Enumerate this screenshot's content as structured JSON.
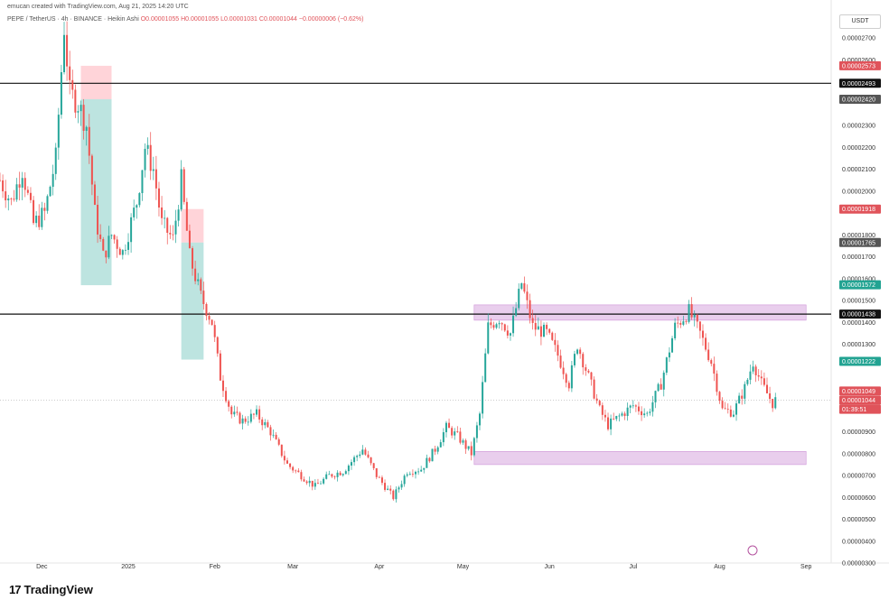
{
  "header": {
    "created_by": "emucan created with TradingView.com, Aug 21, 2025 14:20 UTC",
    "symbol_line": "PEPE / TetherUS · 4h · BINANCE · Heikin Ashi",
    "ohlc": "O0.00001055 H0.00001055 L0.00001031 C0.00001044 −0.00000006 (−0.62%)"
  },
  "currency": "USDT",
  "brand": {
    "name": "TradingView",
    "logo": "17"
  },
  "colors": {
    "up": "#26a69a",
    "down": "#ef5350",
    "zone": "#e1bee7",
    "green_box": "#b2dfdb",
    "red_box": "#ffcdd2",
    "badge_red": "#e0535a",
    "badge_gray": "#555555",
    "badge_black": "#111111",
    "badge_green": "#22a392"
  },
  "chart_data": {
    "type": "candlestick",
    "title": "PEPE / TetherUS · 4h · BINANCE · Heikin Ashi",
    "x_axis": {
      "labels": [
        "Dec",
        "2025",
        "Feb",
        "Mar",
        "Apr",
        "May",
        "Jun",
        "Jul",
        "Aug",
        "Sep"
      ],
      "dates": [
        "2024-12-01",
        "2025-01-01",
        "2025-02-01",
        "2025-03-01",
        "2025-04-01",
        "2025-05-01",
        "2025-06-01",
        "2025-07-01",
        "2025-08-01",
        "2025-09-01"
      ],
      "range": [
        "2024-11-16",
        "2025-09-10"
      ]
    },
    "y_axis": {
      "range": [
        3e-06,
        2.75e-05
      ],
      "ticks": [
        "0.00000300",
        "0.00000400",
        "0.00000500",
        "0.00000600",
        "0.00000700",
        "0.00000800",
        "0.00000900",
        "0.00001300",
        "0.00001400",
        "0.00001500",
        "0.00001600",
        "0.00001700",
        "0.00001800",
        "0.00002000",
        "0.00002100",
        "0.00002200",
        "0.00002300",
        "0.00002600",
        "0.00002700"
      ],
      "tick_values": [
        3e-06,
        4e-06,
        5e-06,
        6e-06,
        7e-06,
        8e-06,
        9e-06,
        1.3e-05,
        1.4e-05,
        1.5e-05,
        1.6e-05,
        1.7e-05,
        1.8e-05,
        2e-05,
        2.1e-05,
        2.2e-05,
        2.3e-05,
        2.6e-05,
        2.7e-05
      ]
    },
    "path_points": [
      [
        "2024-11-16",
        2.05e-05
      ],
      [
        "2024-11-20",
        1.95e-05
      ],
      [
        "2024-11-24",
        2.1e-05
      ],
      [
        "2024-11-28",
        1.85e-05
      ],
      [
        "2024-12-02",
        1.9e-05
      ],
      [
        "2024-12-06",
        2.15e-05
      ],
      [
        "2024-12-09",
        2.75e-05
      ],
      [
        "2024-12-11",
        2.45e-05
      ],
      [
        "2024-12-14",
        2.4e-05
      ],
      [
        "2024-12-17",
        2.3e-05
      ],
      [
        "2024-12-20",
        1.9e-05
      ],
      [
        "2024-12-23",
        1.7e-05
      ],
      [
        "2024-12-26",
        1.8e-05
      ],
      [
        "2024-12-30",
        1.72e-05
      ],
      [
        "2025-01-04",
        1.95e-05
      ],
      [
        "2025-01-07",
        2.2e-05
      ],
      [
        "2025-01-10",
        2.1e-05
      ],
      [
        "2025-01-13",
        1.85e-05
      ],
      [
        "2025-01-17",
        1.78e-05
      ],
      [
        "2025-01-20",
        2.05e-05
      ],
      [
        "2025-01-23",
        1.7e-05
      ],
      [
        "2025-01-27",
        1.52e-05
      ],
      [
        "2025-01-31",
        1.4e-05
      ],
      [
        "2025-02-03",
        1.15e-05
      ],
      [
        "2025-02-07",
        9.8e-06
      ],
      [
        "2025-02-11",
        9.5e-06
      ],
      [
        "2025-02-16",
        9.8e-06
      ],
      [
        "2025-02-21",
        9e-06
      ],
      [
        "2025-02-27",
        7.5e-06
      ],
      [
        "2025-03-04",
        7e-06
      ],
      [
        "2025-03-09",
        6.5e-06
      ],
      [
        "2025-03-14",
        7e-06
      ],
      [
        "2025-03-19",
        7.2e-06
      ],
      [
        "2025-03-26",
        8.2e-06
      ],
      [
        "2025-03-31",
        7e-06
      ],
      [
        "2025-04-06",
        6e-06
      ],
      [
        "2025-04-11",
        7.2e-06
      ],
      [
        "2025-04-16",
        7.3e-06
      ],
      [
        "2025-04-21",
        8.2e-06
      ],
      [
        "2025-04-25",
        9.2e-06
      ],
      [
        "2025-04-29",
        8.8e-06
      ],
      [
        "2025-05-04",
        8e-06
      ],
      [
        "2025-05-07",
        9.8e-06
      ],
      [
        "2025-05-10",
        1.38e-05
      ],
      [
        "2025-05-14",
        1.42e-05
      ],
      [
        "2025-05-18",
        1.35e-05
      ],
      [
        "2025-05-22",
        1.58e-05
      ],
      [
        "2025-05-26",
        1.38e-05
      ],
      [
        "2025-05-31",
        1.35e-05
      ],
      [
        "2025-06-04",
        1.25e-05
      ],
      [
        "2025-06-08",
        1.12e-05
      ],
      [
        "2025-06-11",
        1.3e-05
      ],
      [
        "2025-06-15",
        1.15e-05
      ],
      [
        "2025-06-19",
        1e-05
      ],
      [
        "2025-06-22",
        9.3e-06
      ],
      [
        "2025-06-26",
        9.7e-06
      ],
      [
        "2025-07-01",
        1.02e-05
      ],
      [
        "2025-07-06",
        9.8e-06
      ],
      [
        "2025-07-11",
        1.12e-05
      ],
      [
        "2025-07-16",
        1.38e-05
      ],
      [
        "2025-07-21",
        1.45e-05
      ],
      [
        "2025-07-25",
        1.35e-05
      ],
      [
        "2025-07-29",
        1.22e-05
      ],
      [
        "2025-08-02",
        1e-05
      ],
      [
        "2025-08-06",
        9.9e-06
      ],
      [
        "2025-08-10",
        1.1e-05
      ],
      [
        "2025-08-13",
        1.22e-05
      ],
      [
        "2025-08-16",
        1.12e-05
      ],
      [
        "2025-08-20",
        1.03e-05
      ],
      [
        "2025-08-21",
        1.044e-05
      ]
    ],
    "horizontal_lines": [
      {
        "value": 2.493e-05
      },
      {
        "value": 1.438e-05
      }
    ],
    "zones": [
      {
        "from": "2025-05-05",
        "to": "2025-09-01",
        "low": 1.41e-05,
        "high": 1.48e-05
      },
      {
        "from": "2025-05-05",
        "to": "2025-09-01",
        "low": 7.5e-06,
        "high": 8.1e-06
      }
    ],
    "position_boxes": [
      {
        "from": "2024-12-15",
        "to": "2024-12-26",
        "entry": 2.42e-05,
        "stop": 2.573e-05,
        "target": 1.57e-05,
        "color": "mixed"
      },
      {
        "from": "2025-01-20",
        "to": "2025-01-28",
        "entry": 1.765e-05,
        "stop": 1.918e-05,
        "target": 1.23e-05,
        "color": "mixed"
      }
    ],
    "price_badges": [
      {
        "text": "0.00002573",
        "value": 2.573e-05,
        "kind": "red"
      },
      {
        "text": "0.00002493",
        "value": 2.493e-05,
        "kind": "black"
      },
      {
        "text": "0.00002420",
        "value": 2.42e-05,
        "kind": "gray"
      },
      {
        "text": "0.00001918",
        "value": 1.918e-05,
        "kind": "red"
      },
      {
        "text": "0.00001765",
        "value": 1.765e-05,
        "kind": "gray"
      },
      {
        "text": "0.00001572",
        "value": 1.572e-05,
        "kind": "green"
      },
      {
        "text": "0.00001438",
        "value": 1.438e-05,
        "kind": "black"
      },
      {
        "text": "0.00001222",
        "value": 1.222e-05,
        "kind": "green"
      },
      {
        "text": "0.00001049",
        "value": 1.049e-05,
        "kind": "red"
      },
      {
        "text": "0.00001044",
        "value": 1.044e-05,
        "kind": "red_last"
      },
      {
        "text": "01:39:51",
        "value": 1.044e-05,
        "kind": "countdown"
      }
    ],
    "current_price": 1.044e-05,
    "grid": false
  }
}
